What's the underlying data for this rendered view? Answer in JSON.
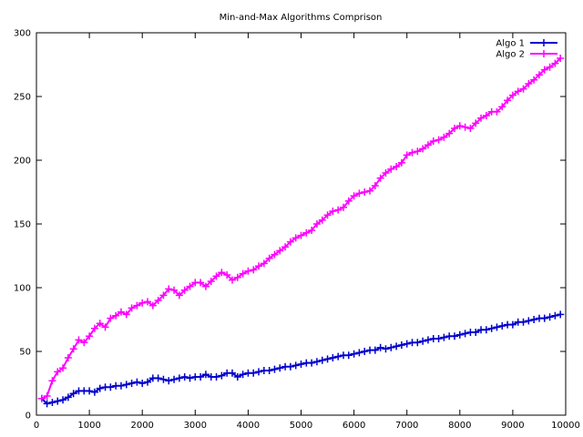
{
  "chart_data": {
    "type": "line",
    "title": "Min-and-Max Algorithms Comprison",
    "xlabel": "",
    "ylabel": "",
    "xlim": [
      0,
      10000
    ],
    "ylim": [
      0,
      300
    ],
    "x_ticks": [
      0,
      1000,
      2000,
      3000,
      4000,
      5000,
      6000,
      7000,
      8000,
      9000,
      10000
    ],
    "y_ticks": [
      0,
      50,
      100,
      150,
      200,
      250,
      300
    ],
    "x_tick_labels": [
      "0",
      "1000",
      "2000",
      "3000",
      "4000",
      "5000",
      "6000",
      "7000",
      "8000",
      "9000",
      "10000"
    ],
    "y_tick_labels": [
      "0",
      "50",
      "100",
      "150",
      "200",
      "250",
      "300"
    ],
    "grid": false,
    "legend_position": "top-right",
    "marker": "plus",
    "x": [
      100,
      200,
      300,
      400,
      500,
      600,
      700,
      800,
      900,
      1000,
      1100,
      1200,
      1300,
      1400,
      1500,
      1600,
      1700,
      1800,
      1900,
      2000,
      2100,
      2200,
      2300,
      2400,
      2500,
      2600,
      2700,
      2800,
      2900,
      3000,
      3100,
      3200,
      3300,
      3400,
      3500,
      3600,
      3700,
      3800,
      3900,
      4000,
      4100,
      4200,
      4300,
      4400,
      4500,
      4600,
      4700,
      4800,
      4900,
      5000,
      5100,
      5200,
      5300,
      5400,
      5500,
      5600,
      5700,
      5800,
      5900,
      6000,
      6100,
      6200,
      6300,
      6400,
      6500,
      6600,
      6700,
      6800,
      6900,
      7000,
      7100,
      7200,
      7300,
      7400,
      7500,
      7600,
      7700,
      7800,
      7900,
      8000,
      8100,
      8200,
      8300,
      8400,
      8500,
      8600,
      8700,
      8800,
      8900,
      9000,
      9100,
      9200,
      9300,
      9400,
      9500,
      9600,
      9700,
      9800,
      9900
    ],
    "series": [
      {
        "name": "Algo 1",
        "color": "#0000cc",
        "values": [
          13,
          9,
          10,
          11,
          12,
          14,
          17,
          19,
          19,
          19,
          18,
          21,
          22,
          22,
          23,
          23,
          24,
          25,
          26,
          25,
          26,
          29,
          29,
          28,
          27,
          28,
          29,
          30,
          29,
          30,
          30,
          32,
          30,
          30,
          31,
          33,
          33,
          30,
          32,
          33,
          33,
          34,
          35,
          35,
          36,
          37,
          38,
          38,
          39,
          40,
          41,
          41,
          42,
          43,
          44,
          45,
          46,
          47,
          47,
          48,
          49,
          50,
          51,
          51,
          53,
          52,
          53,
          54,
          55,
          56,
          57,
          57,
          58,
          59,
          60,
          60,
          61,
          62,
          62,
          63,
          64,
          65,
          65,
          67,
          67,
          68,
          69,
          70,
          71,
          71,
          73,
          73,
          74,
          75,
          76,
          76,
          77,
          78,
          79
        ]
      },
      {
        "name": "Algo 2",
        "color": "#ff00ff",
        "values": [
          13,
          15,
          27,
          34,
          37,
          45,
          52,
          59,
          57,
          62,
          68,
          72,
          69,
          76,
          78,
          81,
          79,
          84,
          86,
          88,
          89,
          86,
          90,
          94,
          99,
          98,
          94,
          98,
          101,
          104,
          104,
          101,
          105,
          109,
          112,
          110,
          106,
          108,
          111,
          113,
          114,
          117,
          119,
          123,
          126,
          129,
          132,
          136,
          139,
          141,
          143,
          145,
          150,
          153,
          157,
          160,
          161,
          163,
          168,
          172,
          174,
          175,
          176,
          180,
          186,
          190,
          193,
          195,
          198,
          204,
          206,
          207,
          209,
          212,
          215,
          216,
          218,
          221,
          225,
          227,
          226,
          225,
          229,
          233,
          235,
          238,
          238,
          242,
          247,
          251,
          254,
          256,
          260,
          263,
          267,
          271,
          273,
          276,
          280
        ]
      }
    ]
  }
}
